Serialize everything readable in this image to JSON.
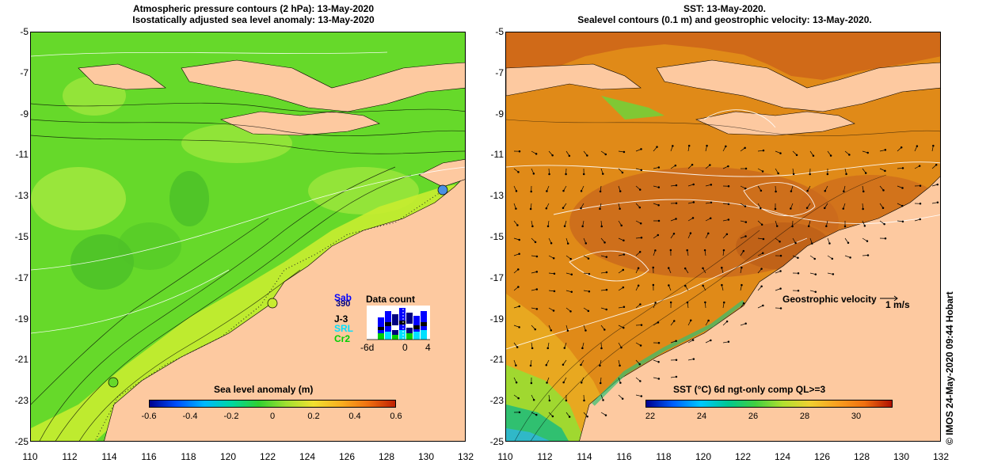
{
  "left": {
    "title_line1": "Atmospheric pressure contours (2 hPa): 13-May-2020",
    "title_line2": "Isostatically adjusted sea level anomaly: 13-May-2020",
    "colorbar_label": "Sea level anomaly (m)",
    "colorbar_ticks": [
      "-0.6",
      "-0.4",
      "-0.2",
      "0",
      "0.2",
      "0.4",
      "0.6"
    ],
    "data_count": {
      "title": "Data count",
      "satellites": [
        {
          "name": "Sab",
          "color": "#0000ff"
        },
        {
          "name": "390",
          "color": "#000080"
        },
        {
          "name": "J-3",
          "color": "#000000"
        },
        {
          "name": "SRL",
          "color": "#00e0ff"
        },
        {
          "name": "Cr2",
          "color": "#00d000"
        }
      ],
      "x_ticks": [
        "-6d",
        "0",
        "4"
      ]
    }
  },
  "right": {
    "title_line1": "SST: 13-May-2020.",
    "title_line2": "Sealevel contours (0.1 m) and geostrophic velocity: 13-May-2020.",
    "colorbar_label": "SST (°C) 6d ngt-only comp QL>=3",
    "colorbar_ticks": [
      "22",
      "24",
      "26",
      "28",
      "30"
    ],
    "velocity_label": "Geostrophic velocity",
    "velocity_scale": "1 m/s"
  },
  "axes": {
    "lat_ticks": [
      "-5",
      "-7",
      "-9",
      "-11",
      "-13",
      "-15",
      "-17",
      "-19",
      "-21",
      "-23",
      "-25"
    ],
    "lon_ticks": [
      "110",
      "112",
      "114",
      "116",
      "118",
      "120",
      "122",
      "124",
      "126",
      "128",
      "130",
      "132"
    ],
    "lat_range": [
      -25,
      -5
    ],
    "lon_range": [
      110,
      132
    ]
  },
  "credit": "© IMOS 24-May-2020 09:44 Hobart",
  "colors": {
    "land": "#fdc9a0",
    "sla_ocean": "#66d92a",
    "sla_light": "#9be63c",
    "sst_ocean": "#e08a18",
    "sst_dark": "#c8651c"
  }
}
